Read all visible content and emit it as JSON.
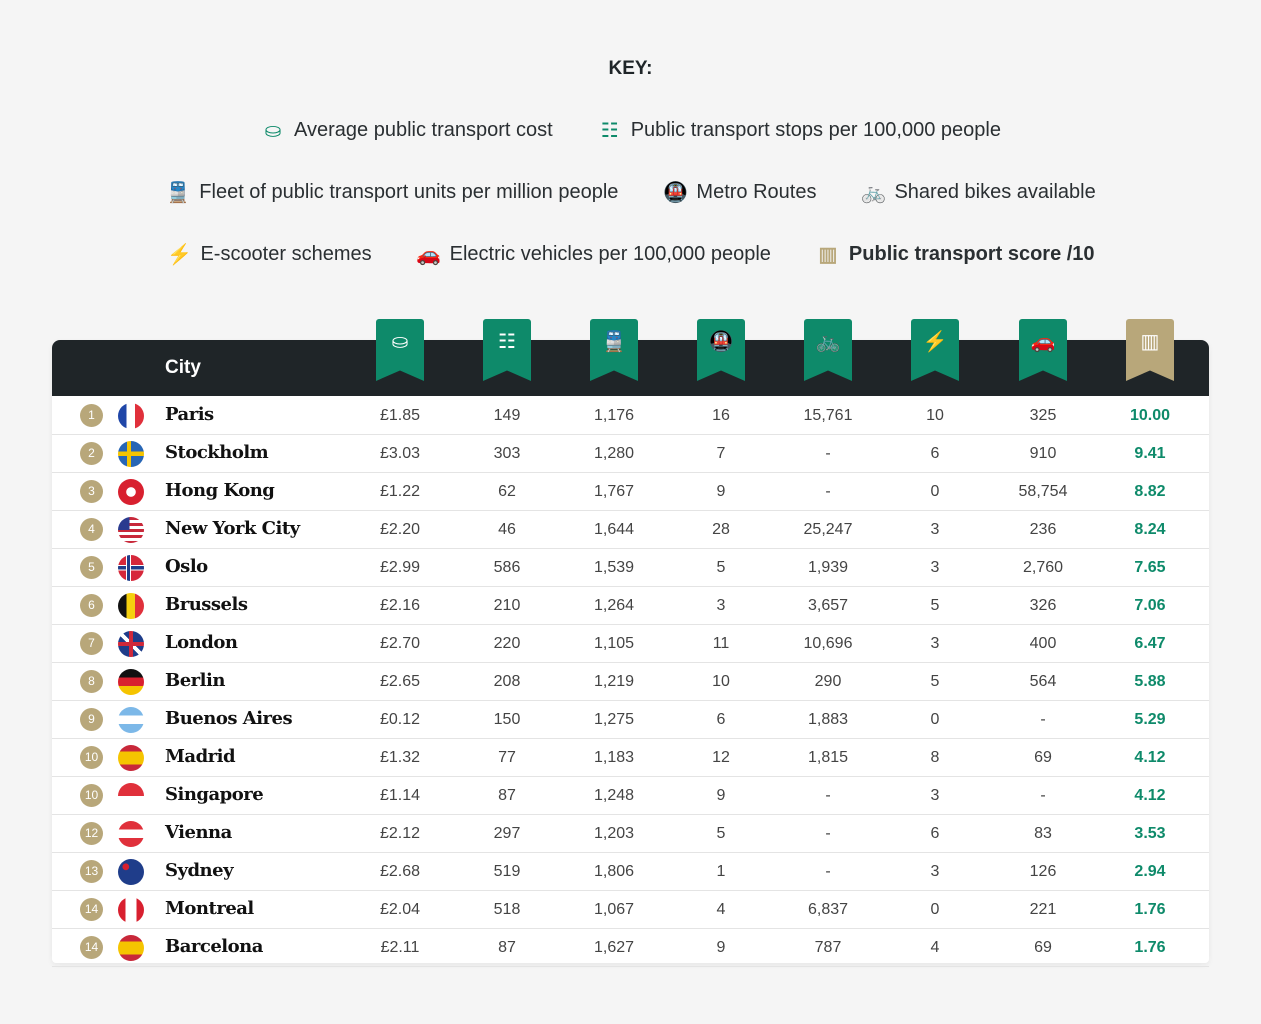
{
  "key": {
    "title": "KEY:",
    "items": [
      {
        "icon": "coins-icon",
        "glyph": "⛀",
        "label": "Average public transport cost"
      },
      {
        "icon": "rail-track-icon",
        "glyph": "☷",
        "label": "Public transport stops per 100,000 people"
      },
      {
        "icon": "train-icon",
        "glyph": "🚆",
        "label": "Fleet of public transport units per million people"
      },
      {
        "icon": "metro-icon",
        "glyph": "🚇",
        "label": "Metro Routes"
      },
      {
        "icon": "bicycle-icon",
        "glyph": "🚲",
        "label": "Shared bikes available"
      },
      {
        "icon": "charging-station-icon",
        "glyph": "⚡",
        "label": "E-scooter schemes"
      },
      {
        "icon": "electric-car-icon",
        "glyph": "🚗",
        "label": "Electric vehicles per 100,000 people"
      },
      {
        "icon": "bar-chart-icon",
        "glyph": "▥",
        "label": "Public transport score /10"
      }
    ]
  },
  "colors": {
    "green": "#0e8a6a",
    "gold": "#b8a77a",
    "header": "#1f2528"
  },
  "chart_data": {
    "type": "table",
    "columns": [
      "City",
      "Average public transport cost",
      "Public transport stops per 100,000 people",
      "Fleet of public transport units per million people",
      "Metro Routes",
      "Shared bikes available",
      "E-scooter schemes",
      "Electric vehicles per 100,000 people",
      "Public transport score /10"
    ],
    "city_header": "City",
    "rows": [
      {
        "rank": "1",
        "city": "Paris",
        "flag": "france",
        "v": [
          "£1.85",
          "149",
          "1,176",
          "16",
          "15,761",
          "10",
          "325",
          "10.00"
        ]
      },
      {
        "rank": "2",
        "city": "Stockholm",
        "flag": "sweden",
        "v": [
          "£3.03",
          "303",
          "1,280",
          "7",
          "-",
          "6",
          "910",
          "9.41"
        ]
      },
      {
        "rank": "3",
        "city": "Hong Kong",
        "flag": "hong-kong",
        "v": [
          "£1.22",
          "62",
          "1,767",
          "9",
          "-",
          "0",
          "58,754",
          "8.82"
        ]
      },
      {
        "rank": "4",
        "city": "New York City",
        "flag": "usa",
        "v": [
          "£2.20",
          "46",
          "1,644",
          "28",
          "25,247",
          "3",
          "236",
          "8.24"
        ]
      },
      {
        "rank": "5",
        "city": "Oslo",
        "flag": "norway",
        "v": [
          "£2.99",
          "586",
          "1,539",
          "5",
          "1,939",
          "3",
          "2,760",
          "7.65"
        ]
      },
      {
        "rank": "6",
        "city": "Brussels",
        "flag": "belgium",
        "v": [
          "£2.16",
          "210",
          "1,264",
          "3",
          "3,657",
          "5",
          "326",
          "7.06"
        ]
      },
      {
        "rank": "7",
        "city": "London",
        "flag": "uk",
        "v": [
          "£2.70",
          "220",
          "1,105",
          "11",
          "10,696",
          "3",
          "400",
          "6.47"
        ]
      },
      {
        "rank": "8",
        "city": "Berlin",
        "flag": "germany",
        "v": [
          "£2.65",
          "208",
          "1,219",
          "10",
          "290",
          "5",
          "564",
          "5.88"
        ]
      },
      {
        "rank": "9",
        "city": "Buenos Aires",
        "flag": "argentina",
        "v": [
          "£0.12",
          "150",
          "1,275",
          "6",
          "1,883",
          "0",
          "-",
          "5.29"
        ]
      },
      {
        "rank": "10",
        "city": "Madrid",
        "flag": "spain",
        "v": [
          "£1.32",
          "77",
          "1,183",
          "12",
          "1,815",
          "8",
          "69",
          "4.12"
        ]
      },
      {
        "rank": "10",
        "city": "Singapore",
        "flag": "singapore",
        "v": [
          "£1.14",
          "87",
          "1,248",
          "9",
          "-",
          "3",
          "-",
          "4.12"
        ]
      },
      {
        "rank": "12",
        "city": "Vienna",
        "flag": "austria",
        "v": [
          "£2.12",
          "297",
          "1,203",
          "5",
          "-",
          "6",
          "83",
          "3.53"
        ]
      },
      {
        "rank": "13",
        "city": "Sydney",
        "flag": "australia",
        "v": [
          "£2.68",
          "519",
          "1,806",
          "1",
          "-",
          "3",
          "126",
          "2.94"
        ]
      },
      {
        "rank": "14",
        "city": "Montreal",
        "flag": "canada",
        "v": [
          "£2.04",
          "518",
          "1,067",
          "4",
          "6,837",
          "0",
          "221",
          "1.76"
        ]
      },
      {
        "rank": "14",
        "city": "Barcelona",
        "flag": "spain",
        "v": [
          "£2.11",
          "87",
          "1,627",
          "9",
          "787",
          "4",
          "69",
          "1.76"
        ]
      }
    ]
  }
}
